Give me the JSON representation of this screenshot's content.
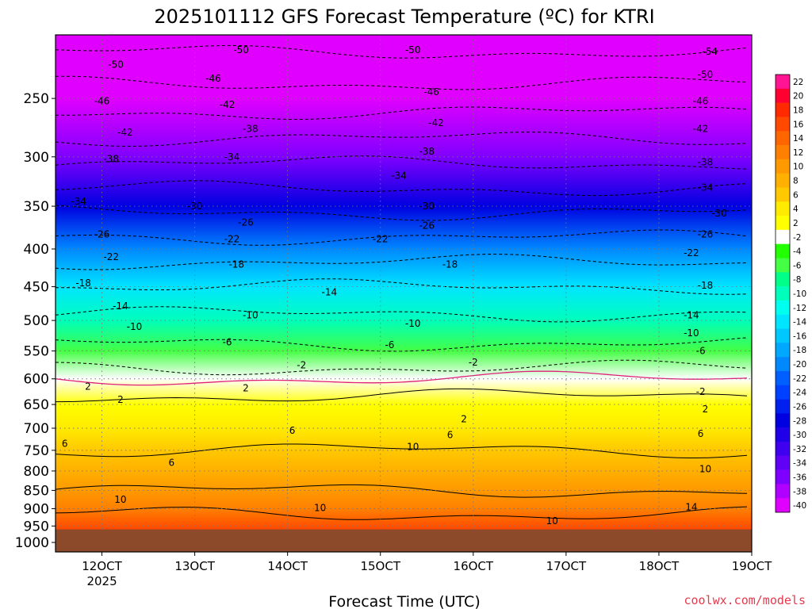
{
  "chart_data": {
    "type": "heatmap",
    "title": "2025101112 GFS Forecast Temperature (ºC) for KTRI",
    "xlabel": "Forecast Time (UTC)",
    "ylabel": "",
    "x_ticks": [
      {
        "value": 0,
        "label": "12OCT",
        "sublabel": "2025"
      },
      {
        "value": 1,
        "label": "13OCT",
        "sublabel": ""
      },
      {
        "value": 2,
        "label": "14OCT",
        "sublabel": ""
      },
      {
        "value": 3,
        "label": "15OCT",
        "sublabel": ""
      },
      {
        "value": 4,
        "label": "16OCT",
        "sublabel": ""
      },
      {
        "value": 5,
        "label": "17OCT",
        "sublabel": ""
      },
      {
        "value": 6,
        "label": "18OCT",
        "sublabel": ""
      },
      {
        "value": 7,
        "label": "19OCT",
        "sublabel": ""
      }
    ],
    "xlim": [
      -0.5,
      7.0
    ],
    "y_ticks": [
      250,
      300,
      350,
      400,
      450,
      500,
      550,
      600,
      650,
      700,
      750,
      800,
      850,
      900,
      950,
      1000
    ],
    "ylim": [
      1030,
      205
    ],
    "y_scale": "log",
    "ground_pressure": 960,
    "ground_color": "#8c4a2a",
    "colorbar": {
      "labels": [
        "22",
        "20",
        "18",
        "16",
        "14",
        "12",
        "10",
        "8",
        "6",
        "4",
        "2",
        "-2",
        "-4",
        "-6",
        "-8",
        "-10",
        "-12",
        "-14",
        "-16",
        "-18",
        "-20",
        "-22",
        "-24",
        "-26",
        "-28",
        "-30",
        "-32",
        "-34",
        "-36",
        "-38",
        "-40"
      ],
      "colors": [
        "#ff1493",
        "#ff0030",
        "#ff2a00",
        "#ff4800",
        "#ff6600",
        "#ff8000",
        "#ff9900",
        "#ffb000",
        "#ffc800",
        "#ffeb00",
        "#ffff00",
        "#ffffff",
        "#22ff00",
        "#44ff44",
        "#00ff88",
        "#00ffbb",
        "#00ffee",
        "#00e5ff",
        "#00c8ff",
        "#00a8ff",
        "#0088ff",
        "#0060ff",
        "#0040ff",
        "#0020f0",
        "#0000e0",
        "#2000e8",
        "#4000f0",
        "#6000f5",
        "#8000ff",
        "#b000ff",
        "#e000ff"
      ]
    },
    "temperature_profile": [
      {
        "pressure": 960,
        "temp": 17
      },
      {
        "pressure": 900,
        "temp": 13
      },
      {
        "pressure": 850,
        "temp": 10
      },
      {
        "pressure": 800,
        "temp": 8
      },
      {
        "pressure": 750,
        "temp": 6
      },
      {
        "pressure": 700,
        "temp": 5
      },
      {
        "pressure": 650,
        "temp": 3
      },
      {
        "pressure": 600,
        "temp": 0
      },
      {
        "pressure": 550,
        "temp": -5
      },
      {
        "pressure": 500,
        "temp": -9
      },
      {
        "pressure": 450,
        "temp": -14
      },
      {
        "pressure": 400,
        "temp": -20
      },
      {
        "pressure": 350,
        "temp": -27
      },
      {
        "pressure": 300,
        "temp": -35
      },
      {
        "pressure": 250,
        "temp": -44
      },
      {
        "pressure": 205,
        "temp": -52
      }
    ],
    "contour_labels": [
      {
        "x": -0.25,
        "p": 345,
        "text": "-34"
      },
      {
        "x": 0.1,
        "p": 302,
        "text": "-38"
      },
      {
        "x": 0.25,
        "p": 278,
        "text": "-42"
      },
      {
        "x": 0.0,
        "p": 252,
        "text": "-46"
      },
      {
        "x": 0.15,
        "p": 225,
        "text": "-50"
      },
      {
        "x": 0.0,
        "p": 382,
        "text": "-26"
      },
      {
        "x": 0.1,
        "p": 410,
        "text": "-22"
      },
      {
        "x": -0.2,
        "p": 445,
        "text": "-18"
      },
      {
        "x": 0.2,
        "p": 478,
        "text": "-14"
      },
      {
        "x": 0.35,
        "p": 510,
        "text": "-10"
      },
      {
        "x": 1.0,
        "p": 350,
        "text": "-30"
      },
      {
        "x": 1.35,
        "p": 255,
        "text": "-42"
      },
      {
        "x": 1.2,
        "p": 235,
        "text": "-46"
      },
      {
        "x": 1.5,
        "p": 215,
        "text": "-50"
      },
      {
        "x": 1.4,
        "p": 300,
        "text": "-34"
      },
      {
        "x": 1.6,
        "p": 275,
        "text": "-38"
      },
      {
        "x": 1.55,
        "p": 368,
        "text": "-26"
      },
      {
        "x": 1.4,
        "p": 388,
        "text": "-22"
      },
      {
        "x": 1.45,
        "p": 420,
        "text": "-18"
      },
      {
        "x": 1.6,
        "p": 492,
        "text": "-10"
      },
      {
        "x": 1.35,
        "p": 535,
        "text": "-6"
      },
      {
        "x": 2.45,
        "p": 458,
        "text": "-14"
      },
      {
        "x": 2.15,
        "p": 575,
        "text": "-2"
      },
      {
        "x": 3.35,
        "p": 215,
        "text": "-50"
      },
      {
        "x": 3.55,
        "p": 245,
        "text": "-46"
      },
      {
        "x": 3.6,
        "p": 270,
        "text": "-42"
      },
      {
        "x": 3.5,
        "p": 295,
        "text": "-38"
      },
      {
        "x": 3.2,
        "p": 318,
        "text": "-34"
      },
      {
        "x": 3.5,
        "p": 350,
        "text": "-30"
      },
      {
        "x": 3.5,
        "p": 372,
        "text": "-26"
      },
      {
        "x": 3.0,
        "p": 388,
        "text": "-22"
      },
      {
        "x": 3.75,
        "p": 420,
        "text": "-18"
      },
      {
        "x": 3.35,
        "p": 505,
        "text": "-10"
      },
      {
        "x": 3.1,
        "p": 540,
        "text": "-6"
      },
      {
        "x": 4.0,
        "p": 570,
        "text": "-2"
      },
      {
        "x": 6.55,
        "p": 216,
        "text": "-54"
      },
      {
        "x": 6.5,
        "p": 232,
        "text": "-50"
      },
      {
        "x": 6.45,
        "p": 252,
        "text": "-46"
      },
      {
        "x": 6.45,
        "p": 275,
        "text": "-42"
      },
      {
        "x": 6.5,
        "p": 305,
        "text": "-38"
      },
      {
        "x": 6.5,
        "p": 330,
        "text": "-34"
      },
      {
        "x": 6.65,
        "p": 358,
        "text": "-30"
      },
      {
        "x": 6.5,
        "p": 382,
        "text": "-26"
      },
      {
        "x": 6.35,
        "p": 405,
        "text": "-22"
      },
      {
        "x": 6.5,
        "p": 448,
        "text": "-18"
      },
      {
        "x": 6.35,
        "p": 492,
        "text": "-14"
      },
      {
        "x": 6.35,
        "p": 520,
        "text": "-10"
      },
      {
        "x": 6.45,
        "p": 550,
        "text": "-6"
      },
      {
        "x": 6.45,
        "p": 625,
        "text": "-2"
      },
      {
        "x": -0.15,
        "p": 615,
        "text": "2"
      },
      {
        "x": 0.2,
        "p": 640,
        "text": "2"
      },
      {
        "x": 1.55,
        "p": 618,
        "text": "2"
      },
      {
        "x": 3.9,
        "p": 680,
        "text": "2"
      },
      {
        "x": 6.5,
        "p": 660,
        "text": "2"
      },
      {
        "x": -0.4,
        "p": 735,
        "text": "6"
      },
      {
        "x": 0.75,
        "p": 780,
        "text": "6"
      },
      {
        "x": 2.05,
        "p": 705,
        "text": "6"
      },
      {
        "x": 3.75,
        "p": 715,
        "text": "6"
      },
      {
        "x": 6.45,
        "p": 712,
        "text": "6"
      },
      {
        "x": 0.2,
        "p": 875,
        "text": "10"
      },
      {
        "x": 2.35,
        "p": 898,
        "text": "10"
      },
      {
        "x": 3.35,
        "p": 742,
        "text": "10"
      },
      {
        "x": 4.85,
        "p": 935,
        "text": "10"
      },
      {
        "x": 6.5,
        "p": 795,
        "text": "10"
      },
      {
        "x": 6.35,
        "p": 895,
        "text": "14"
      }
    ]
  },
  "watermark": "coolwx.com/models"
}
